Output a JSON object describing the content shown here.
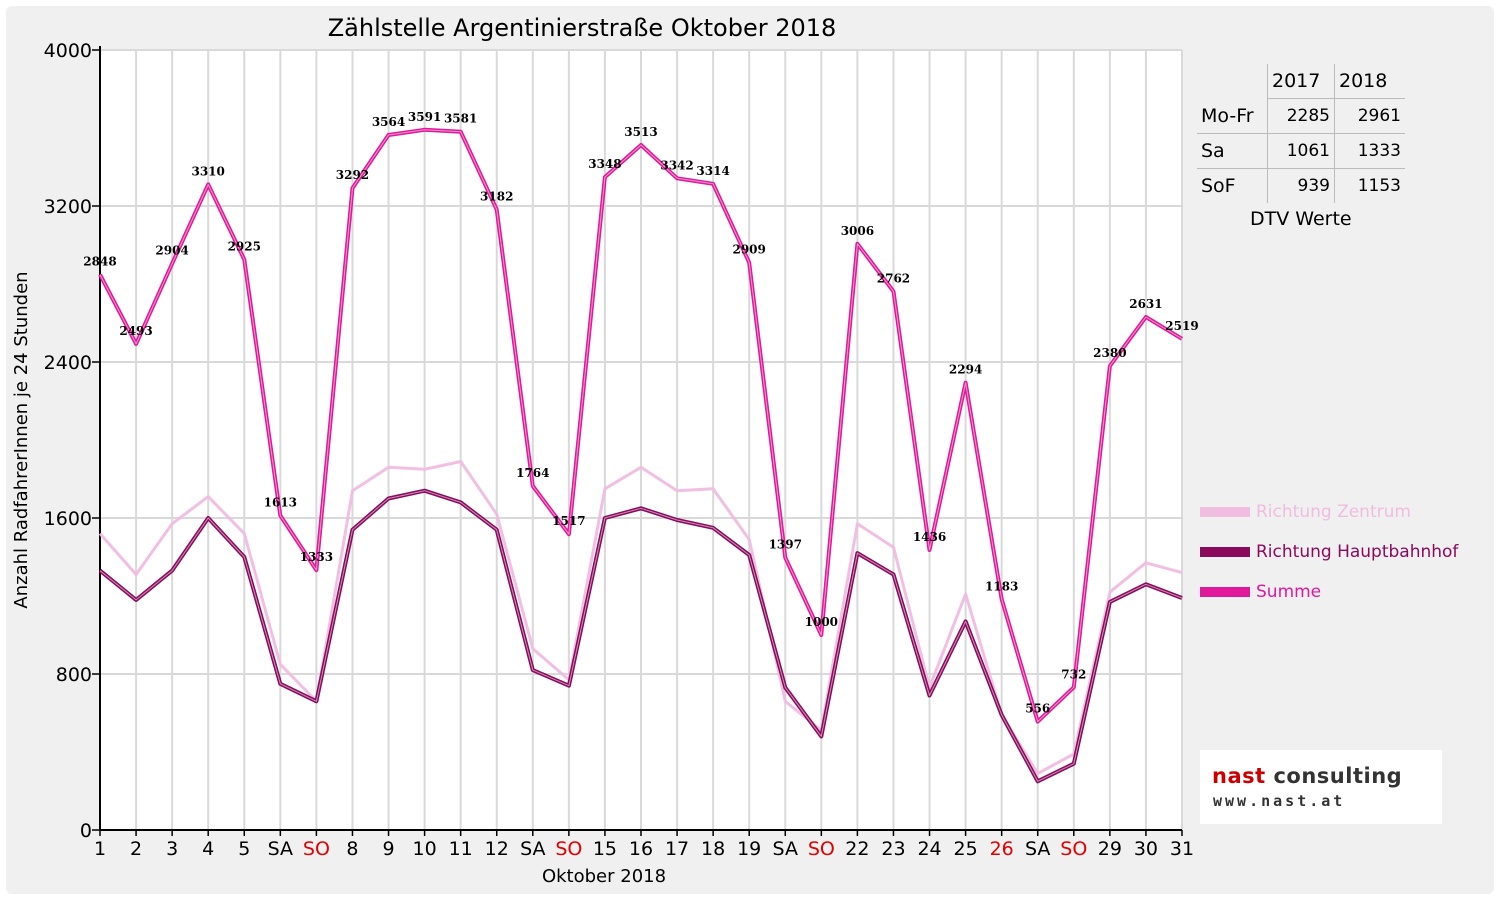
{
  "chart_data": {
    "type": "line",
    "title": "Zählstelle Argentinierstraße Oktober 2018",
    "xlabel": "Oktober 2018",
    "ylabel": "Anzahl RadfahrerInnen je 24 Stunden",
    "ylim": [
      0,
      4000
    ],
    "yticks": [
      "0",
      "800",
      "1600",
      "2400",
      "3200",
      "4000"
    ],
    "grid": true,
    "legend_position": "right",
    "categories": [
      "1",
      "2",
      "3",
      "4",
      "5",
      "SA",
      "SO",
      "8",
      "9",
      "10",
      "11",
      "12",
      "SA",
      "SO",
      "15",
      "16",
      "17",
      "18",
      "19",
      "SA",
      "SO",
      "22",
      "23",
      "24",
      "25",
      "26",
      "SA",
      "SO",
      "29",
      "30",
      "31"
    ],
    "red_categories": [
      "SO",
      "26"
    ],
    "series": [
      {
        "name": "Richtung Zentrum",
        "color": "#f0bce0",
        "values": [
          1520,
          1310,
          1570,
          1710,
          1520,
          850,
          660,
          1740,
          1860,
          1850,
          1890,
          1620,
          930,
          770,
          1750,
          1860,
          1740,
          1750,
          1490,
          660,
          510,
          1570,
          1450,
          730,
          1210,
          590,
          290,
          390,
          1220,
          1370,
          1320
        ]
      },
      {
        "name": "Richtung Hauptbahnhof",
        "color": "#8b0a5e",
        "values": [
          1330,
          1180,
          1330,
          1600,
          1400,
          750,
          660,
          1540,
          1700,
          1740,
          1680,
          1540,
          820,
          740,
          1600,
          1650,
          1590,
          1550,
          1410,
          730,
          480,
          1420,
          1310,
          690,
          1070,
          590,
          250,
          340,
          1170,
          1260,
          1190
        ]
      },
      {
        "name": "Summe",
        "color": "#e0189a",
        "values": [
          2848,
          2493,
          2904,
          3310,
          2925,
          1613,
          1333,
          3292,
          3564,
          3591,
          3581,
          3182,
          1764,
          1517,
          3348,
          3513,
          3342,
          3314,
          2909,
          1397,
          1000,
          3006,
          2762,
          1436,
          2294,
          1183,
          556,
          732,
          2380,
          2631,
          2519
        ]
      }
    ],
    "data_labels": [
      "2848",
      "2493",
      "2904",
      "3310",
      "2925",
      "1613",
      "1333",
      "3292",
      "3564",
      "3591",
      "3581",
      "3182",
      "1764",
      "1517",
      "3348",
      "3513",
      "3342",
      "3314",
      "2909",
      "1397",
      "1000",
      "3006",
      "2762",
      "1436",
      "2294",
      "1183",
      "556",
      "732",
      "2380",
      "2631",
      "2519"
    ]
  },
  "dtv_table": {
    "header": [
      "",
      "2017",
      "2018"
    ],
    "rows": [
      {
        "label": "Mo-Fr",
        "v2017": "2285",
        "v2018": "2961"
      },
      {
        "label": "Sa",
        "v2017": "1061",
        "v2018": "1333"
      },
      {
        "label": "SoF",
        "v2017": "939",
        "v2018": "1153"
      }
    ],
    "caption": "DTV Werte"
  },
  "logo": {
    "line1_part1": "nast",
    "line1_part2": "consulting",
    "line2": "www.nast.at",
    "color1": "#cc0000",
    "color2": "#333333"
  }
}
